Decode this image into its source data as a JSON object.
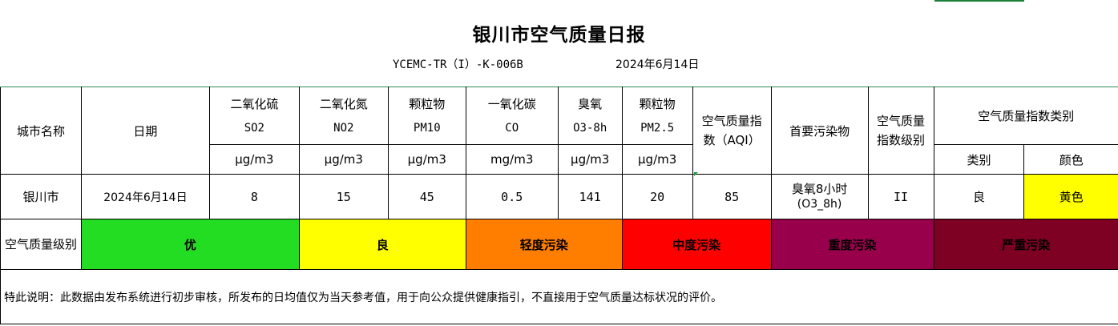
{
  "document": {
    "title": "银川市空气质量日报",
    "code": "YCEMC-TR（I）-K-006B",
    "date": "2024年6月14日"
  },
  "table": {
    "headers": {
      "city": "城市名称",
      "date": "日期",
      "so2": {
        "name": "二氧化硫",
        "formula": "SO2",
        "unit": "μg/m3"
      },
      "no2": {
        "name": "二氧化氮",
        "formula": "NO2",
        "unit": "μg/m3"
      },
      "pm10": {
        "name": "颗粒物",
        "formula": "PM10",
        "unit": "μg/m3"
      },
      "co": {
        "name": "一氧化碳",
        "formula": "CO",
        "unit": "mg/m3"
      },
      "o3": {
        "name": "臭氧",
        "formula": "O3-8h",
        "unit": "μg/m3"
      },
      "pm25": {
        "name": "颗粒物",
        "formula": "PM2.5",
        "unit": "μg/m3"
      },
      "aqi": "空气质量指数（AQI）",
      "primary_pollutant": "首要污染物",
      "aqi_level": "空气质量指数级别",
      "aqi_category": "空气质量指数类别",
      "category": "类别",
      "color": "颜色"
    },
    "row": {
      "city": "银川市",
      "date": "2024年6月14日",
      "so2": "8",
      "no2": "15",
      "pm10": "45",
      "co": "0.5",
      "o3": "141",
      "pm25": "20",
      "aqi": "85",
      "primary_pollutant_line1": "臭氧8小时",
      "primary_pollutant_line2": "(O3_8h)",
      "aqi_level": "II",
      "category": "良",
      "color": "黄色",
      "color_hex": "#ffff00"
    }
  },
  "legend": {
    "label": "空气质量级别",
    "levels": [
      {
        "label": "优",
        "color": "#22dd22"
      },
      {
        "label": "良",
        "color": "#ffff00"
      },
      {
        "label": "轻度污染",
        "color": "#ff7e00"
      },
      {
        "label": "中度污染",
        "color": "#ff0000"
      },
      {
        "label": "重度污染",
        "color": "#99004c"
      },
      {
        "label": "严重污染",
        "color": "#7e0023"
      }
    ]
  },
  "note": "特此说明：此数据由发布系统进行初步审核，所发布的日均值仅为当天参考值，用于向公众提供健康指引，不直接用于空气质量达标状况的评价。"
}
